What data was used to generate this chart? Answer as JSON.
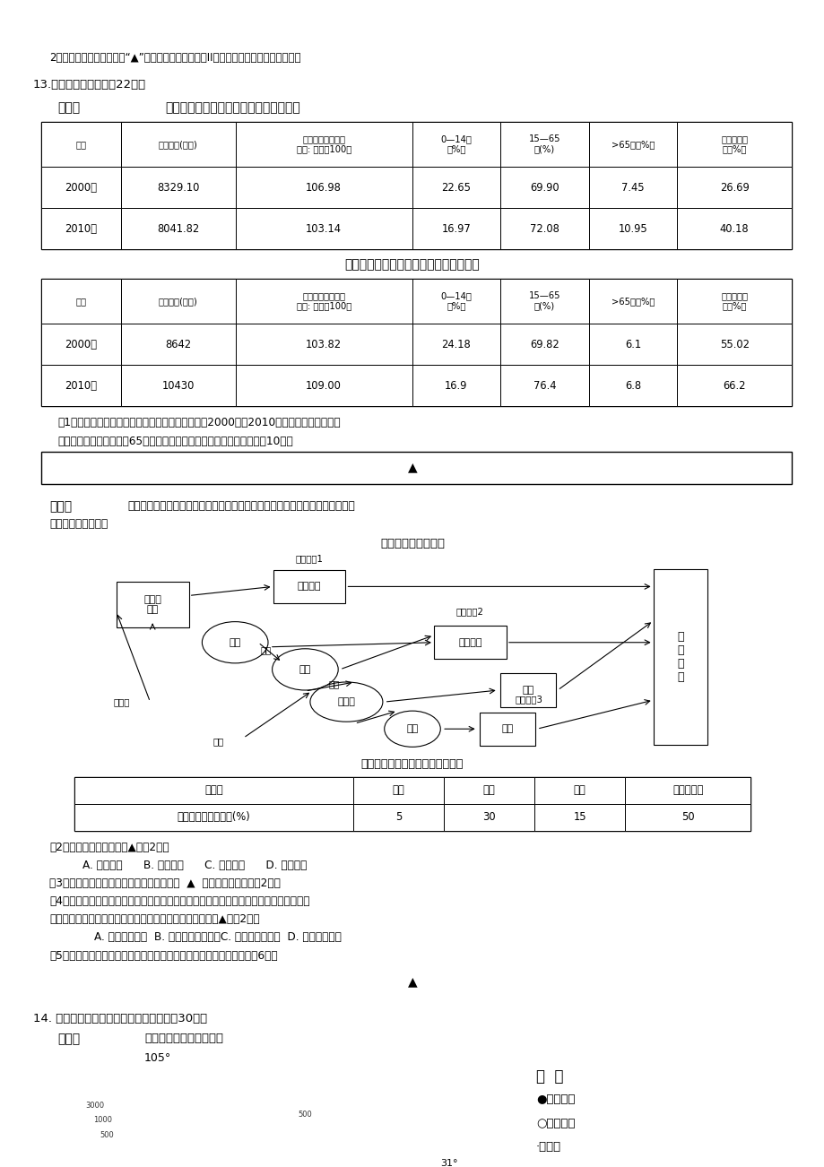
{
  "bg_color": "#ffffff",
  "text_color": "#000000",
  "intro_line": "2、试卷中横线及框内注有“▲”的地方，是需要你在第II卷答题卡上作答的内容或问题。",
  "q13_header": "13.阅读材料回答问题（22分）",
  "mat1_label": "材料一",
  "mat1_title": "四川省第五次、第六次人口普查统计数据",
  "table1_headers": [
    "年份",
    "常住人口(万人)",
    "人口性别比（男性\n女性: 女性为100）",
    "0—14岁\n（%）",
    "15—65\n岁(%)",
    ">65岁（%）",
    "城镇人口比\n例（%）"
  ],
  "table1_data": [
    [
      "2000年",
      "8329.10",
      "106.98",
      "22.65",
      "69.90",
      "7.45",
      "26.69"
    ],
    [
      "2010年",
      "8041.82",
      "103.14",
      "16.97",
      "72.08",
      "10.95",
      "40.18"
    ]
  ],
  "mat2_title": "广东省第五次、第六次人口普查统计数据",
  "table2_headers": [
    "年份",
    "常住人口(万人)",
    "人口性别比（男性\n女性: 女性为100）",
    "0—14岁\n（%）",
    "15—65\n岁(%)",
    ">65岁（%）",
    "城镇人口比\n例（%）"
  ],
  "table2_data": [
    [
      "2000年",
      "8642",
      "103.82",
      "24.18",
      "69.82",
      "6.1",
      "55.02"
    ],
    [
      "2010年",
      "10430",
      "109.00",
      "16.9",
      "76.4",
      "6.8",
      "66.2"
    ]
  ],
  "q1_line1": "（1）根据材料一分析，与四川省相比，广东省在　2000年至2010年间，人口变化特点有",
  "q1_line2": "何不同，并分析该省大于65岁人口比例明显低于四川的最主要原因。（10分）",
  "mat2_label": "材料二",
  "mat2_text": "读下面「我国某地生态农业系统图」及「该地农产品占农业总产值的比重表」，",
  "mat2_text2": "分析回答下列问题。",
  "diagram_title": "某地生态农业系统图",
  "table3_title": "该地农产品占农业总产值的比重表",
  "table3_headers": [
    "农产品",
    "玉米",
    "蔬菜",
    "苹果",
    "乳、肉、蛋"
  ],
  "table3_data": [
    [
      "占农业总产值的比重(%)",
      "5",
      "30",
      "15",
      "50"
    ]
  ],
  "q2": "（2）该地最有可能位于（▲）（2分）",
  "q2_opts": "A. 广州近郊      B. 济南远郊      C. 西安近郊      D. 上海郊区",
  "q3": "（3）该地农业生态系统的三个生产过程中，  ▲  的环境效益最大。（2分）",
  "q4_line1": "（4）该市农村地区利用玉米叶片加工、编织购物袋，这种购物袋易分解且物美价廉。用它",
  "q4_line2": "替代目前广泛使用的同类用品，对环境保护的直接作用是（▲）（2分）",
  "q4_opts": "        A. 减轻大气污染  B. 减轻「白色污染」C. 促进生物多样性  D. 减轻酸雨危害",
  "q5": "（5）简要分析在我国农村推广和实施各类生态农业模式的重要意义。（6分）",
  "q14_header": "14. 阅读下列图文资料，回答下列问题。（30分）",
  "mat3_label": "材料一",
  "mat3_title": "我国某区域等高线地形图",
  "coord_105": "105°",
  "coord_31": "31°",
  "legend_title": "图  例",
  "legend_items": [
    "●特大城市",
    "○中等城市",
    "·小城市"
  ]
}
